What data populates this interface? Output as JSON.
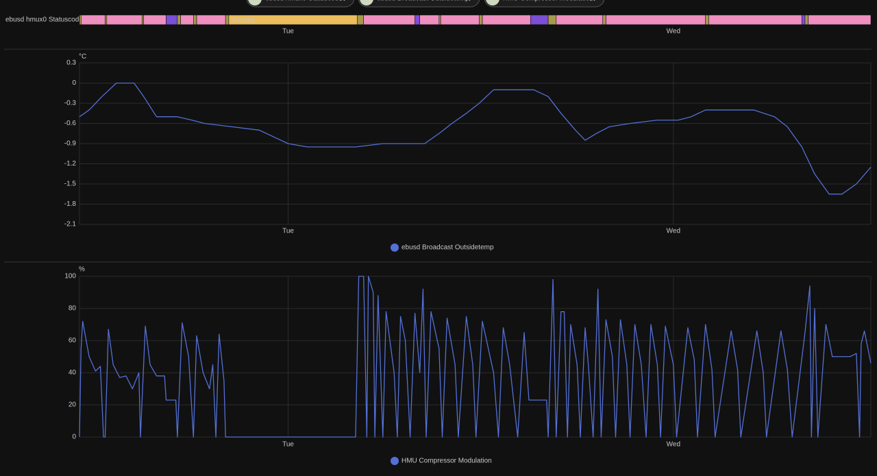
{
  "filters": [
    "ebusd hmux0 Statuscode",
    "ebusd Broadcast Outsidetemp",
    "HMU Compressor Modulation"
  ],
  "chart_data": [
    {
      "type": "timeline",
      "label": "ebusd hmux0 Statuscode",
      "xlim": [
        -13.0,
        36.3
      ],
      "xticks": [
        {
          "value": 0,
          "label": "Tue"
        },
        {
          "value": 24,
          "label": "Wed"
        }
      ],
      "segments": [
        {
          "start": -13.0,
          "end": -12.9,
          "color": "#a59a4b"
        },
        {
          "start": -12.9,
          "end": -11.4,
          "color": "#ee8fc0"
        },
        {
          "start": -11.4,
          "end": -11.3,
          "color": "#a59a4b"
        },
        {
          "start": -11.3,
          "end": -9.1,
          "color": "#ee8fc0"
        },
        {
          "start": -9.1,
          "end": -9.0,
          "color": "#a59a4b"
        },
        {
          "start": -9.0,
          "end": -7.6,
          "color": "#ee8fc0"
        },
        {
          "start": -7.6,
          "end": -6.9,
          "color": "#7b4fd6"
        },
        {
          "start": -6.9,
          "end": -6.7,
          "color": "#a59a4b"
        },
        {
          "start": -6.7,
          "end": -5.9,
          "color": "#ee8fc0"
        },
        {
          "start": -5.9,
          "end": -5.7,
          "color": "#a59a4b"
        },
        {
          "start": -5.7,
          "end": -3.9,
          "color": "#ee8fc0"
        },
        {
          "start": -3.9,
          "end": -3.7,
          "color": "#a59a4b"
        },
        {
          "start": -3.7,
          "end": 4.3,
          "color": "#ecbd5c",
          "label": "Standby"
        },
        {
          "start": 4.3,
          "end": 4.7,
          "color": "#a59a4b"
        },
        {
          "start": 4.7,
          "end": 7.9,
          "color": "#ee8fc0"
        },
        {
          "start": 7.9,
          "end": 8.2,
          "color": "#7b4fd6"
        },
        {
          "start": 8.2,
          "end": 9.4,
          "color": "#ee8fc0"
        },
        {
          "start": 9.4,
          "end": 9.5,
          "color": "#a59a4b"
        },
        {
          "start": 9.5,
          "end": 11.9,
          "color": "#ee8fc0"
        },
        {
          "start": 11.9,
          "end": 12.1,
          "color": "#a59a4b"
        },
        {
          "start": 12.1,
          "end": 15.1,
          "color": "#ee8fc0"
        },
        {
          "start": 15.1,
          "end": 16.2,
          "color": "#7b4fd6"
        },
        {
          "start": 16.2,
          "end": 16.7,
          "color": "#a59a4b"
        },
        {
          "start": 16.7,
          "end": 19.6,
          "color": "#ee8fc0"
        },
        {
          "start": 19.6,
          "end": 19.8,
          "color": "#a59a4b"
        },
        {
          "start": 19.8,
          "end": 26.0,
          "color": "#ee8fc0"
        },
        {
          "start": 26.0,
          "end": 26.2,
          "color": "#a59a4b"
        },
        {
          "start": 26.2,
          "end": 32.0,
          "color": "#ee8fc0"
        },
        {
          "start": 32.0,
          "end": 32.2,
          "color": "#7b4fd6"
        },
        {
          "start": 32.2,
          "end": 32.4,
          "color": "#a59a4b"
        },
        {
          "start": 32.4,
          "end": 36.3,
          "color": "#ee8fc0"
        }
      ]
    },
    {
      "type": "line",
      "y_unit": "°C",
      "grid": true,
      "xlim": [
        -13.0,
        36.3
      ],
      "xticks": [
        {
          "value": 0,
          "label": "Tue"
        },
        {
          "value": 24,
          "label": "Wed"
        }
      ],
      "ylim": [
        -2.1,
        0.3
      ],
      "yticks": [
        0.3,
        0,
        -0.3,
        -0.6,
        -0.9,
        -1.2,
        -1.5,
        -1.8,
        -2.1
      ],
      "x": [
        -13.0,
        -12.4,
        -11.6,
        -10.7,
        -9.6,
        -9.0,
        -8.2,
        -6.9,
        -6.0,
        -5.2,
        -3.5,
        -1.8,
        -0.9,
        0.0,
        1.2,
        2.5,
        4.2,
        5.9,
        7.6,
        8.5,
        9.4,
        10.2,
        11.1,
        11.9,
        12.8,
        13.6,
        15.3,
        16.2,
        17.0,
        17.9,
        18.5,
        19.2,
        20.0,
        21.3,
        23.0,
        24.3,
        25.1,
        26.0,
        27.3,
        29.0,
        30.3,
        31.1,
        32.0,
        32.8,
        33.7,
        34.5,
        35.4,
        36.3
      ],
      "series": [
        {
          "name": "ebusd Broadcast Outsidetemp",
          "color": "#5470d6",
          "values": [
            -0.5,
            -0.4,
            -0.2,
            0.0,
            0.0,
            -0.2,
            -0.5,
            -0.5,
            -0.55,
            -0.6,
            -0.65,
            -0.7,
            -0.8,
            -0.9,
            -0.95,
            -0.95,
            -0.95,
            -0.9,
            -0.9,
            -0.9,
            -0.75,
            -0.6,
            -0.45,
            -0.3,
            -0.1,
            -0.1,
            -0.1,
            -0.2,
            -0.45,
            -0.7,
            -0.85,
            -0.75,
            -0.65,
            -0.6,
            -0.55,
            -0.55,
            -0.5,
            -0.4,
            -0.4,
            -0.4,
            -0.5,
            -0.65,
            -0.95,
            -1.35,
            -1.65,
            -1.65,
            -1.5,
            -1.25
          ]
        }
      ]
    },
    {
      "type": "line",
      "y_unit": "%",
      "grid": true,
      "xlim": [
        -13.0,
        36.3
      ],
      "xticks": [
        {
          "value": 0,
          "label": "Tue"
        },
        {
          "value": 24,
          "label": "Wed"
        }
      ],
      "ylim": [
        0,
        100
      ],
      "yticks": [
        0,
        20,
        40,
        60,
        80,
        100
      ],
      "x": [
        -13.0,
        -12.9,
        -12.8,
        -12.4,
        -12.0,
        -11.7,
        -11.5,
        -11.4,
        -11.2,
        -10.9,
        -10.5,
        -10.1,
        -9.7,
        -9.3,
        -9.2,
        -8.9,
        -8.6,
        -8.2,
        -7.7,
        -7.6,
        -7.0,
        -6.9,
        -6.6,
        -6.2,
        -5.9,
        -5.7,
        -5.3,
        -4.9,
        -4.7,
        -4.5,
        -4.3,
        -4.0,
        -3.9,
        4.2,
        4.4,
        4.7,
        4.9,
        5.0,
        5.3,
        5.4,
        5.6,
        5.9,
        6.1,
        6.6,
        6.8,
        7.0,
        7.3,
        7.6,
        7.9,
        8.2,
        8.4,
        8.6,
        8.9,
        9.4,
        9.6,
        9.9,
        10.4,
        10.6,
        11.1,
        11.5,
        11.7,
        12.1,
        12.8,
        13.1,
        13.4,
        13.8,
        14.3,
        14.7,
        15.0,
        16.1,
        16.2,
        16.5,
        16.7,
        17.0,
        17.2,
        17.4,
        17.6,
        18.0,
        18.2,
        18.5,
        18.7,
        19.0,
        19.3,
        19.5,
        19.8,
        20.2,
        20.4,
        20.7,
        21.1,
        21.3,
        21.6,
        22.0,
        22.3,
        22.6,
        23.0,
        23.2,
        23.5,
        24.0,
        24.2,
        24.9,
        25.3,
        25.5,
        26.0,
        26.4,
        26.6,
        27.6,
        28.0,
        28.2,
        29.2,
        29.6,
        29.8,
        30.7,
        31.1,
        31.4,
        32.2,
        32.5,
        32.6,
        32.8,
        33.0,
        33.5,
        33.9,
        35.0,
        35.4,
        35.6,
        35.7,
        35.9,
        36.3
      ],
      "series": [
        {
          "name": "HMU Compressor Modulation",
          "color": "#5470d6",
          "values": [
            0,
            55,
            72,
            50,
            41,
            44,
            0,
            0,
            67,
            45,
            37,
            38,
            30,
            40,
            0,
            69,
            45,
            38,
            38,
            23,
            23,
            0,
            71,
            50,
            0,
            63,
            40,
            30,
            45,
            0,
            64,
            35,
            0,
            0,
            100,
            100,
            0,
            100,
            90,
            0,
            88,
            0,
            78,
            40,
            0,
            75,
            60,
            0,
            77,
            40,
            92,
            0,
            78,
            55,
            0,
            74,
            45,
            0,
            75,
            45,
            0,
            72,
            40,
            0,
            68,
            45,
            0,
            65,
            23,
            23,
            0,
            98,
            0,
            78,
            78,
            0,
            70,
            45,
            0,
            68,
            45,
            0,
            92,
            0,
            73,
            50,
            0,
            73,
            45,
            0,
            70,
            45,
            0,
            70,
            45,
            0,
            69,
            45,
            0,
            68,
            48,
            0,
            70,
            42,
            0,
            66,
            42,
            0,
            66,
            40,
            0,
            66,
            42,
            0,
            65,
            94,
            0,
            80,
            0,
            70,
            50,
            50,
            52,
            0,
            58,
            66,
            46
          ]
        }
      ]
    }
  ]
}
